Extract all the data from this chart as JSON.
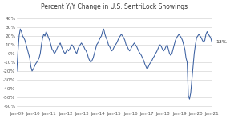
{
  "title": "Percent Y/Y Change in U.S. SentriLock Showings",
  "line_color": "#3a5fa0",
  "background_color": "#ffffff",
  "annotation_text": "13%",
  "ytick_labels": [
    "-60%",
    "-50%",
    "-40%",
    "-30%",
    "-20%",
    "-10%",
    "0%",
    "10%",
    "20%",
    "30%",
    "40%"
  ],
  "yticks": [
    -60,
    -50,
    -40,
    -30,
    -20,
    -10,
    0,
    10,
    20,
    30,
    40
  ],
  "xtick_labels": [
    "Jan-09",
    "Jan-10",
    "Jan-11",
    "Jan-12",
    "Jan-13",
    "Jan-14",
    "Jan-15",
    "Jan-16",
    "Jan-17",
    "Jan-18",
    "Jan-19",
    "Jan-20",
    "Jan-21"
  ],
  "ylim": [
    -65,
    47
  ],
  "xlim": [
    0,
    144
  ],
  "values": [
    -20,
    2,
    20,
    28,
    25,
    20,
    18,
    15,
    10,
    5,
    0,
    -5,
    -15,
    -20,
    -18,
    -15,
    -12,
    -10,
    -8,
    -5,
    0,
    10,
    18,
    22,
    20,
    25,
    22,
    18,
    15,
    10,
    5,
    3,
    0,
    2,
    5,
    8,
    10,
    12,
    8,
    5,
    2,
    0,
    2,
    5,
    3,
    5,
    8,
    10,
    8,
    5,
    2,
    0,
    5,
    8,
    10,
    12,
    10,
    8,
    5,
    3,
    0,
    -5,
    -8,
    -10,
    -8,
    -5,
    0,
    5,
    10,
    12,
    15,
    18,
    20,
    25,
    28,
    22,
    18,
    15,
    10,
    8,
    5,
    3,
    5,
    8,
    10,
    12,
    15,
    18,
    20,
    22,
    20,
    18,
    15,
    10,
    8,
    5,
    3,
    5,
    8,
    10,
    12,
    10,
    8,
    5,
    2,
    0,
    -2,
    -5,
    -8,
    -12,
    -15,
    -18,
    -15,
    -12,
    -10,
    -8,
    -5,
    -3,
    0,
    2,
    5,
    8,
    10,
    8,
    5,
    3,
    5,
    8,
    10,
    5,
    0,
    -2,
    0,
    5,
    10,
    15,
    18,
    20,
    22,
    20,
    18,
    15,
    10,
    5,
    -5,
    -10,
    -48,
    -52,
    -45,
    -30,
    -15,
    0,
    10,
    18,
    20,
    22,
    20,
    18,
    15,
    13,
    15,
    22,
    25,
    22,
    20,
    18,
    13
  ]
}
